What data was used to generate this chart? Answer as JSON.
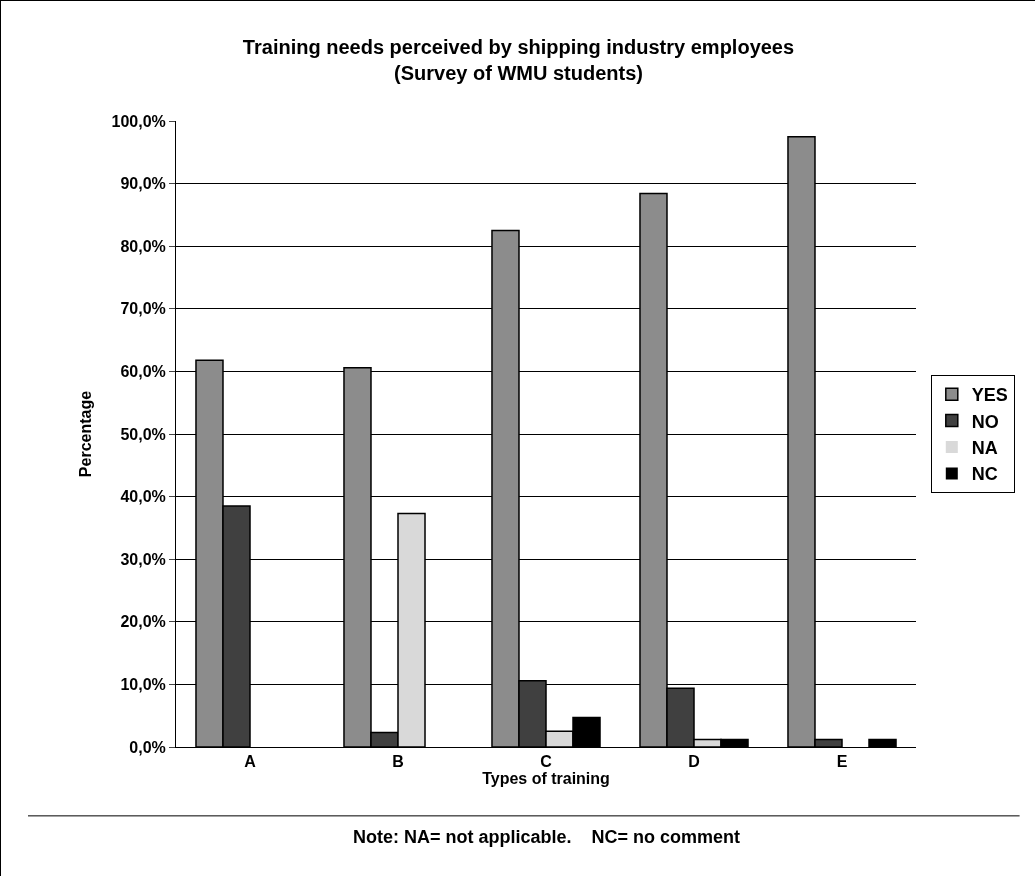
{
  "chart_data": {
    "type": "bar",
    "title": "Training needs perceived by shipping industry employees",
    "subtitle": "(Survey of WMU students)",
    "xlabel": "Types of training",
    "ylabel": "Percentage",
    "categories": [
      "A",
      "B",
      "C",
      "D",
      "E"
    ],
    "series": [
      {
        "name": "YES",
        "color": "#8c8c8c",
        "values": [
          61.8,
          60.6,
          82.5,
          88.4,
          97.5
        ]
      },
      {
        "name": "NO",
        "color": "#404040",
        "values": [
          38.5,
          2.3,
          10.6,
          9.4,
          1.2
        ]
      },
      {
        "name": "NA",
        "color": "#d9d9d9",
        "values": [
          0,
          37.3,
          2.5,
          1.2,
          0
        ]
      },
      {
        "name": "NC",
        "color": "#000000",
        "values": [
          0,
          0,
          4.7,
          1.2,
          1.2
        ]
      }
    ],
    "ylim": [
      0,
      100
    ],
    "yticks": [
      {
        "value": 0,
        "label": "0,0%"
      },
      {
        "value": 10,
        "label": "10,0%"
      },
      {
        "value": 20,
        "label": "20,0%"
      },
      {
        "value": 30,
        "label": "30,0%"
      },
      {
        "value": 40,
        "label": "40,0%"
      },
      {
        "value": 50,
        "label": "50,0%"
      },
      {
        "value": 60,
        "label": "60,0%"
      },
      {
        "value": 70,
        "label": "70,0%"
      },
      {
        "value": 80,
        "label": "80,0%"
      },
      {
        "value": 90,
        "label": "90,0%"
      },
      {
        "value": 100,
        "label": "100,0%"
      }
    ],
    "grid": "y",
    "legend": "right",
    "annotations": [
      "Note: NA= not applicable.    NC= no comment"
    ]
  }
}
